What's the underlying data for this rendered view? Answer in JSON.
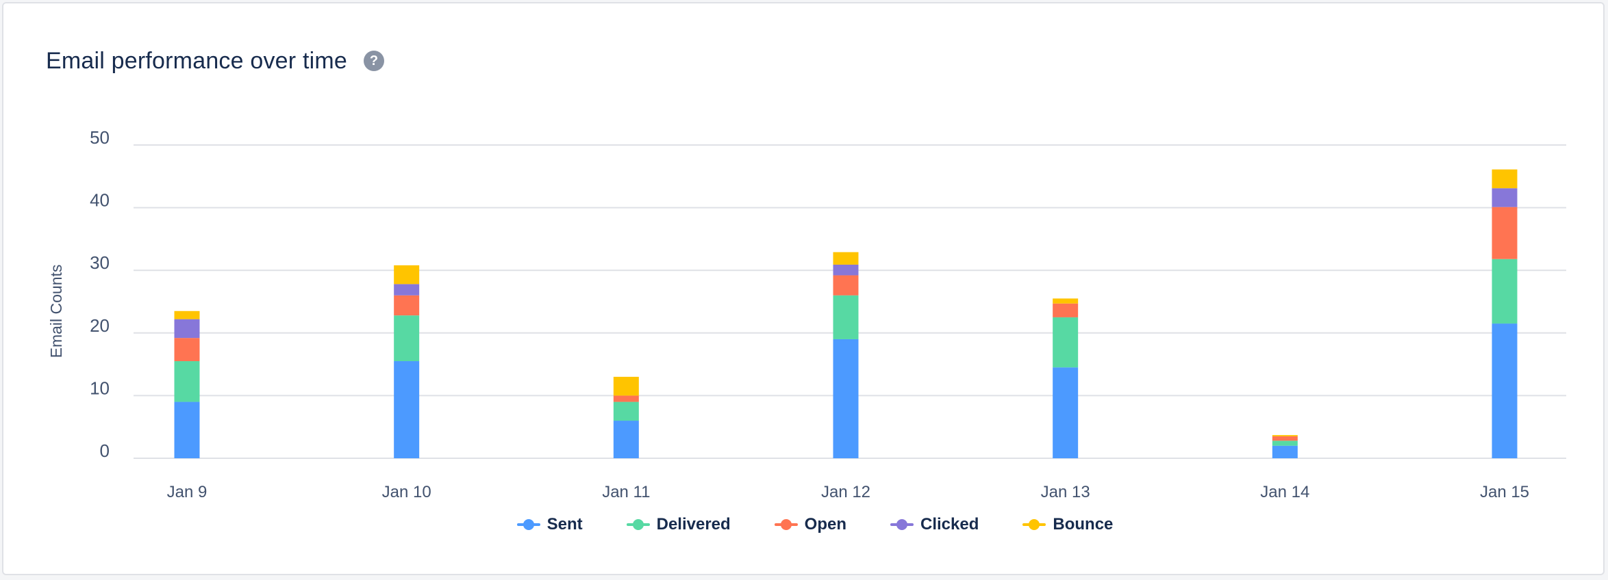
{
  "card": {
    "title": "Email performance over time",
    "help_icon": "?"
  },
  "chart_data": {
    "type": "bar",
    "stacked": true,
    "title": "Email performance over time",
    "xlabel": "",
    "ylabel": "Email Counts",
    "ylim": [
      0,
      50
    ],
    "yticks": [
      0,
      10,
      20,
      30,
      40,
      50
    ],
    "grid": true,
    "legend_position": "bottom-center",
    "categories": [
      "Jan 9",
      "Jan 10",
      "Jan 11",
      "Jan 12",
      "Jan 13",
      "Jan 14",
      "Jan 15"
    ],
    "series": [
      {
        "name": "Sent",
        "color": "#4c9aff",
        "values": [
          9,
          15.5,
          6,
          19,
          14.5,
          2,
          21.5
        ]
      },
      {
        "name": "Delivered",
        "color": "#57d9a3",
        "values": [
          6.5,
          7.3,
          3,
          7,
          8,
          0.8,
          10.3
        ]
      },
      {
        "name": "Open",
        "color": "#ff7452",
        "values": [
          3.7,
          3.2,
          1,
          3.2,
          2.2,
          0.7,
          8.3
        ]
      },
      {
        "name": "Clicked",
        "color": "#8777d9",
        "values": [
          3,
          1.8,
          0,
          1.7,
          0,
          0,
          3
        ]
      },
      {
        "name": "Bounce",
        "color": "#ffc400",
        "values": [
          1.3,
          3,
          3,
          2,
          0.8,
          0.2,
          3
        ]
      }
    ]
  }
}
